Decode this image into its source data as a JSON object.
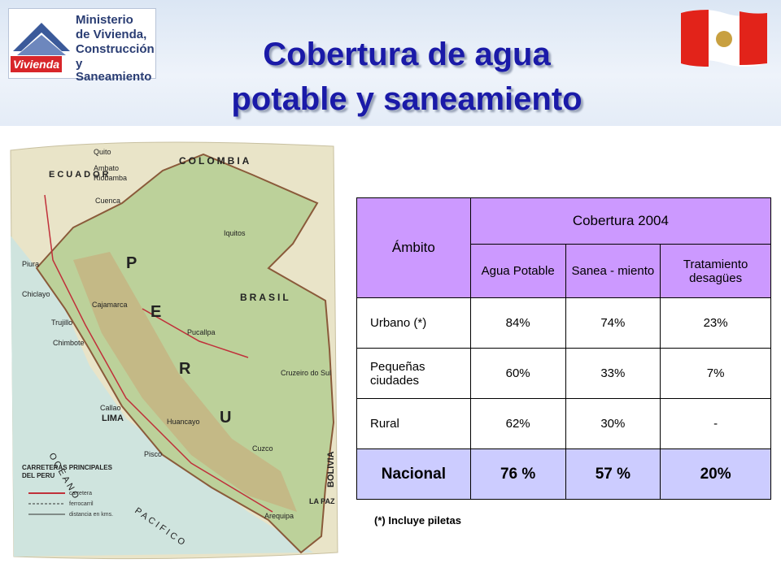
{
  "header": {
    "logo": {
      "badge": "Vivienda",
      "lines": [
        "Ministerio",
        "de Vivienda,",
        "Construcción",
        "y Saneamiento"
      ]
    },
    "title": [
      "Cobertura de agua",
      "potable y saneamiento"
    ]
  },
  "map": {
    "labels": [
      "COLOMBIA",
      "ECUADOR",
      "BRASIL",
      "BOLIVIA",
      "P",
      "E",
      "R",
      "U",
      "OCEANO",
      "PACIFICO",
      "Quito",
      "Ambato",
      "Riobamba",
      "Cuenca",
      "Iquitos",
      "Piura",
      "Chiclayo",
      "Cajamarca",
      "Trujillo",
      "Chimbote",
      "Pucallpa",
      "Callao",
      "LIMA",
      "Huancayo",
      "Pisco",
      "Cuzco",
      "Arequipa",
      "LA PAZ",
      "Cruzeiro do Sul"
    ],
    "legend": {
      "title": [
        "CARRETERAS PRINCIPALES",
        "DEL PERU"
      ],
      "items": [
        "carretera",
        "ferrocarril",
        "distancia en kms."
      ]
    }
  },
  "table": {
    "header": [
      "Ámbito",
      "Cobertura 2004"
    ],
    "subheader": [
      "Agua Potable",
      "Sanea - miento",
      "Tratamiento desagües"
    ],
    "rows": [
      [
        "Urbano (*)",
        "84%",
        "74%",
        "23%"
      ],
      [
        "Pequeñas ciudades",
        "60%",
        "33%",
        "7%"
      ],
      [
        "Rural",
        "62%",
        "30%",
        "-"
      ]
    ],
    "total": [
      "Nacional",
      "76 %",
      "57 %",
      "20%"
    ]
  },
  "footnote": "(*) Incluye piletas"
}
